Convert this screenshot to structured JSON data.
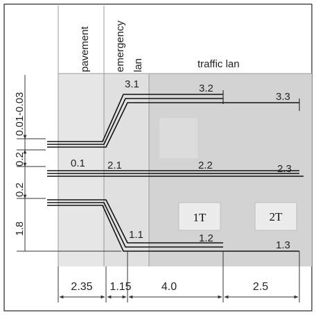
{
  "colors": {
    "pavement_fill": "#e6e6e6",
    "emergency_fill": "#e0e0e0",
    "traffic_fill": "#d3d3d3",
    "line": "#111111",
    "dim_line": "#333333"
  },
  "column_headers": {
    "pavement": "pavement",
    "emergency_line1": "emergency",
    "emergency_line2": "lan",
    "traffic": "traffic lan"
  },
  "point_labels": {
    "p0_1": "0.1",
    "p2_1": "2.1",
    "p2_2": "2.2",
    "p2_3": "2.3",
    "p3_1": "3.1",
    "p3_2": "3.2",
    "p3_3": "3.3",
    "p1_1": "1.1",
    "p1_2": "1.2",
    "p1_3": "1.3"
  },
  "vertical_dimensions": {
    "top": "0.01-0.03",
    "upper_gap": "0.2",
    "lower_gap": "0.2",
    "bottom": "1.8"
  },
  "horizontal_dimensions": {
    "pavement": "2.35",
    "emergency": "1.15",
    "traffic_1": "4.0",
    "traffic_2": "2.5"
  },
  "sensors": {
    "s1": "1T",
    "s2": "2T"
  }
}
